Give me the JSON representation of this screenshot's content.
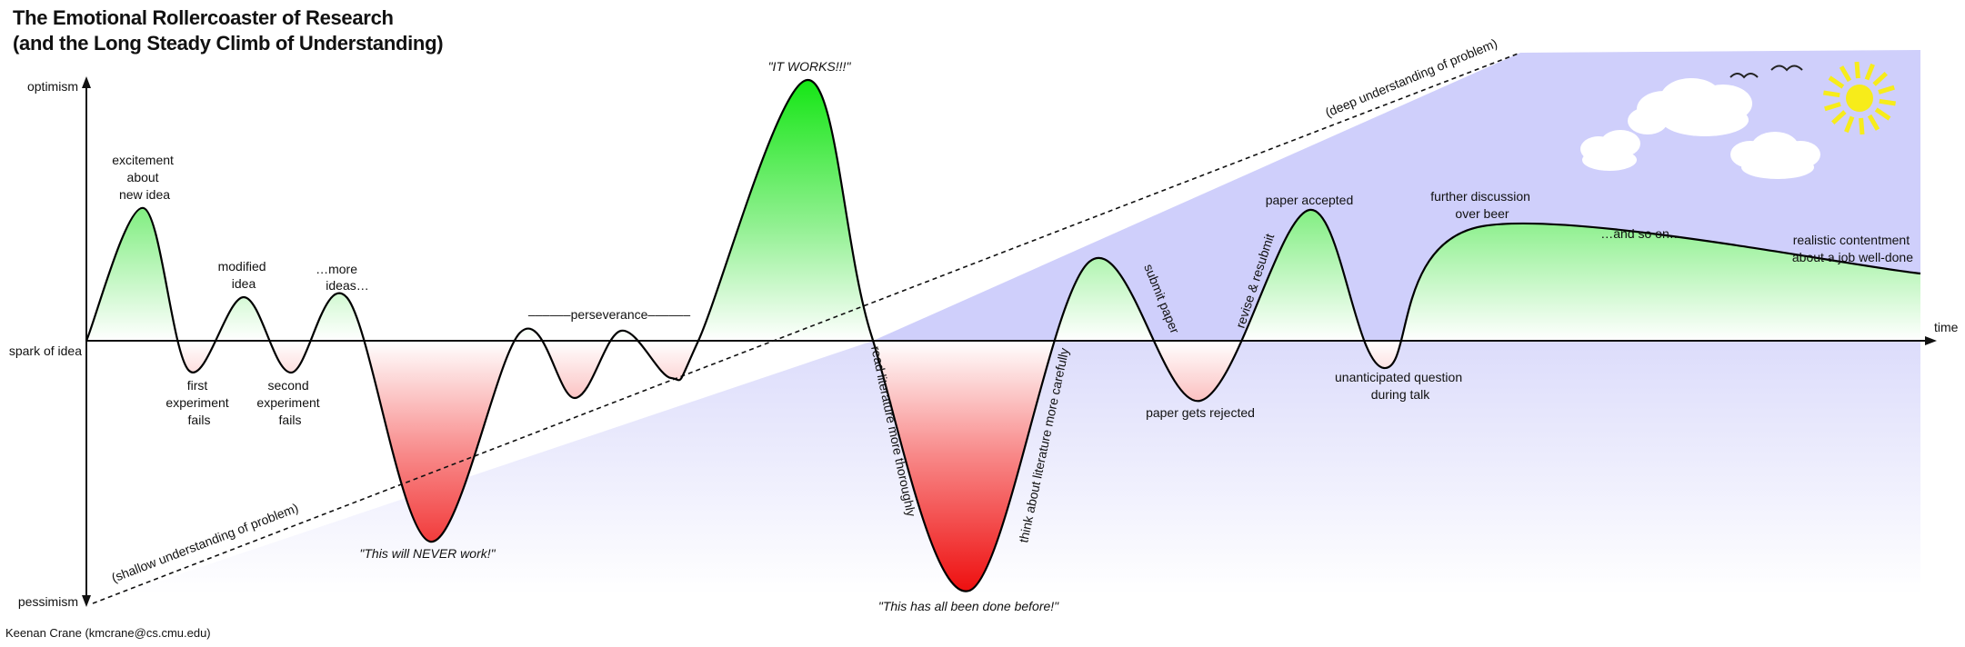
{
  "title_line1": "The Emotional Rollercoaster of Research",
  "title_line2": "(and the Long Steady Climb of Understanding)",
  "credit": "Keenan Crane (kmcrane@cs.cmu.edu)",
  "axes": {
    "y_top": "optimism",
    "y_mid": "spark of idea",
    "y_bottom": "pessimism",
    "x_end": "time"
  },
  "understanding": {
    "shallow": "(shallow understanding of problem)",
    "deep": "(deep understanding of problem)"
  },
  "labels": {
    "excitement": [
      "excitement",
      "about",
      "new idea"
    ],
    "first_fail": [
      "first",
      "experiment",
      "fails"
    ],
    "modified": [
      "modified",
      "idea"
    ],
    "second_fail": [
      "second",
      "experiment",
      "fails"
    ],
    "more_ideas": [
      "…more",
      "ideas…"
    ],
    "never_work": "\"This will NEVER work!\"",
    "perseverance": "––––––perseverance––––––",
    "it_works": "\"IT WORKS!!!\"",
    "read_lit": "read literature more thoroughly",
    "done_before": "\"This has all been done before!\"",
    "think_lit": "think about literature more carefully",
    "submit": "submit paper",
    "rejected": "paper gets rejected",
    "revise": "revise & resubmit",
    "accepted": "paper accepted",
    "question": [
      "unanticipated question",
      "during talk"
    ],
    "beer": [
      "further discussion",
      "over beer"
    ],
    "so_on": "…and so on…",
    "contentment": [
      "realistic contentment",
      "about a job well-done"
    ]
  },
  "colors": {
    "green": "#22e022",
    "red": "#ee1c1c",
    "sky": "#c9c9fb",
    "sun": "#f7ec1a",
    "curve": "#000000"
  }
}
